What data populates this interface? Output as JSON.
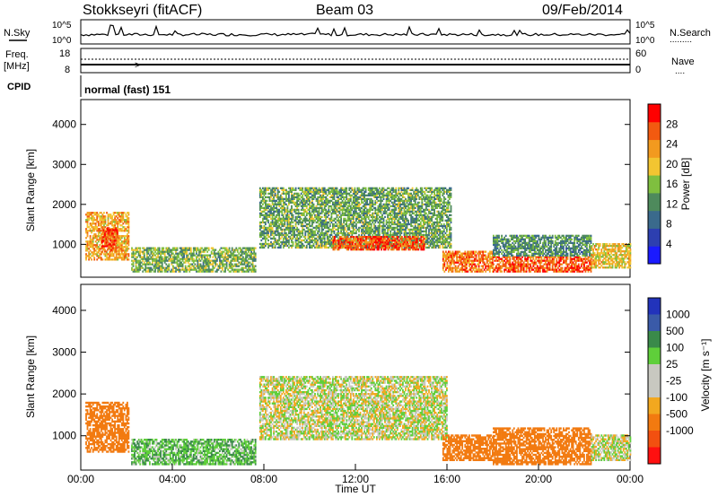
{
  "header": {
    "station": "Stokkseyri (fitACF)",
    "beam": "Beam 03",
    "date": "09/Feb/2014"
  },
  "noise_panel": {
    "left_label": "N.Sky",
    "right_label": "N.Search",
    "left_ticks": [
      "10^5",
      "10^0"
    ],
    "right_ticks": [
      "10^5",
      "10^0"
    ]
  },
  "freq_panel": {
    "left_label_1": "Freq.",
    "left_label_2": "[MHz]",
    "right_label": "Nave",
    "left_ticks": [
      "18",
      "8"
    ],
    "right_ticks": [
      "60",
      "0"
    ]
  },
  "cpid_panel": {
    "label": "CPID",
    "mode_text": "normal (fast) 151"
  },
  "colors": {
    "power_scale": [
      "#1a1aff",
      "#2d3fb0",
      "#3a6a8c",
      "#4e8a5c",
      "#7fbf3f",
      "#f2c531",
      "#f29a1f",
      "#f25a10",
      "#ff0000"
    ],
    "velocity_scale": [
      "#2233bb",
      "#3a5aa8",
      "#3a8a4a",
      "#5fcf3a",
      "#c8c8c0",
      "#c8c8c0",
      "#f2a81f",
      "#f27a10",
      "#f25010",
      "#ff1010"
    ]
  },
  "chart_data": [
    {
      "type": "heatmap",
      "name": "power",
      "ylabel": "Slant Range [km]",
      "yticks": [
        1000,
        2000,
        3000,
        4000
      ],
      "ylim": [
        200,
        4600
      ],
      "xlim": [
        0,
        24
      ],
      "colorbar": {
        "label": "Power [dB]",
        "ticks": [
          4,
          8,
          12,
          16,
          20,
          24,
          28
        ],
        "range": [
          0,
          32
        ]
      },
      "echo_regions": [
        {
          "t0": 0.2,
          "t1": 2.1,
          "r0": 600,
          "r1": 1800,
          "level": 22
        },
        {
          "t0": 0.9,
          "t1": 1.6,
          "r0": 800,
          "r1": 1400,
          "level": 27
        },
        {
          "t0": 2.2,
          "t1": 7.6,
          "r0": 300,
          "r1": 900,
          "level": 15
        },
        {
          "t0": 7.8,
          "t1": 16.2,
          "r0": 900,
          "r1": 2400,
          "level": 14
        },
        {
          "t0": 11.0,
          "t1": 15.0,
          "r0": 850,
          "r1": 1200,
          "level": 27
        },
        {
          "t0": 15.8,
          "t1": 18.0,
          "r0": 300,
          "r1": 800,
          "level": 25
        },
        {
          "t0": 18.0,
          "t1": 22.3,
          "r0": 300,
          "r1": 700,
          "level": 27
        },
        {
          "t0": 18.0,
          "t1": 22.3,
          "r0": 700,
          "r1": 1200,
          "level": 12
        },
        {
          "t0": 22.3,
          "t1": 24.0,
          "r0": 400,
          "r1": 1000,
          "level": 20
        }
      ]
    },
    {
      "type": "heatmap",
      "name": "velocity",
      "ylabel": "Slant Range [km]",
      "yticks": [
        1000,
        2000,
        3000,
        4000
      ],
      "ylim": [
        200,
        4600
      ],
      "xlim": [
        0,
        24
      ],
      "xticks": [
        "00:00",
        "04:00",
        "08:00",
        "12:00",
        "16:00",
        "20:00",
        "00:00"
      ],
      "xlabel": "Time UT",
      "colorbar": {
        "label": "Velocity [m s⁻¹]",
        "ticks": [
          "1000",
          "500",
          "100",
          "25",
          "-25",
          "-100",
          "-500",
          "-1000"
        ]
      },
      "echo_regions": [
        {
          "t0": 0.2,
          "t1": 2.1,
          "r0": 600,
          "r1": 1800,
          "velocity": -300
        },
        {
          "t0": 2.2,
          "t1": 7.6,
          "r0": 300,
          "r1": 900,
          "velocity": 80
        },
        {
          "t0": 7.8,
          "t1": 16.0,
          "r0": 900,
          "r1": 2400,
          "velocity": 0
        },
        {
          "t0": 15.8,
          "t1": 18.0,
          "r0": 400,
          "r1": 1000,
          "velocity": -400
        },
        {
          "t0": 18.0,
          "t1": 22.3,
          "r0": 300,
          "r1": 1200,
          "velocity": -200
        },
        {
          "t0": 22.3,
          "t1": 24.0,
          "r0": 400,
          "r1": 1000,
          "velocity": 0
        }
      ]
    }
  ]
}
